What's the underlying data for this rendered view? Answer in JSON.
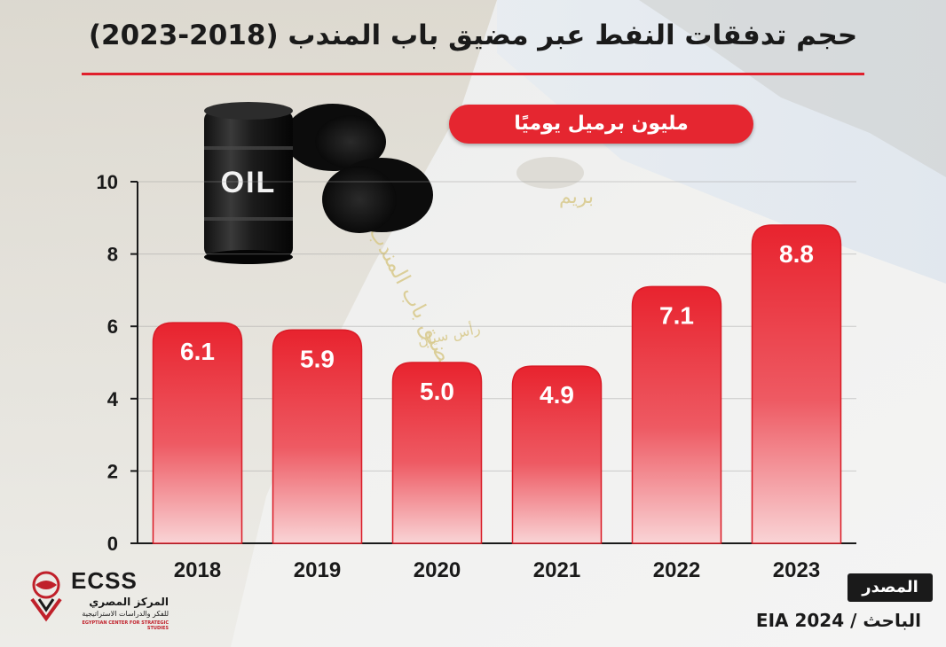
{
  "title": "حجم تدفقات النفط عبر مضيق باب المندب (2018-2023)",
  "unit_label": "مليون برميل يوميًا",
  "source_label": "المصدر",
  "source_text": "الباحث / EIA 2024",
  "map_labels": {
    "strait": "مضيق باب المندب",
    "island": "بريم",
    "cape": "رأس سيان"
  },
  "oil_barrel_label": "OIL",
  "logo": {
    "en": "ECSS",
    "ar": "المركز المصري",
    "ar_sub": "للفكر والدراسات الاستراتيجية",
    "en_sub": "EGYPTIAN CENTER FOR STRATEGIC STUDIES"
  },
  "colors": {
    "accent": "#e52630",
    "bar_top": "#e8232e",
    "bar_bottom": "#f7c6c9",
    "text": "#1a1a1a"
  },
  "chart_data": {
    "type": "bar",
    "categories": [
      "2018",
      "2019",
      "2020",
      "2021",
      "2022",
      "2023"
    ],
    "values": [
      6.1,
      5.9,
      5.0,
      4.9,
      7.1,
      8.8
    ],
    "value_labels": [
      "6.1",
      "5.9",
      "5.0",
      "4.9",
      "7.1",
      "8.8"
    ],
    "ylim": [
      0,
      10
    ],
    "yticks": [
      0,
      2,
      4,
      6,
      8,
      10
    ],
    "ylabel": "مليون برميل يوميًا",
    "xlabel": "",
    "grid": true,
    "legend": "none"
  }
}
